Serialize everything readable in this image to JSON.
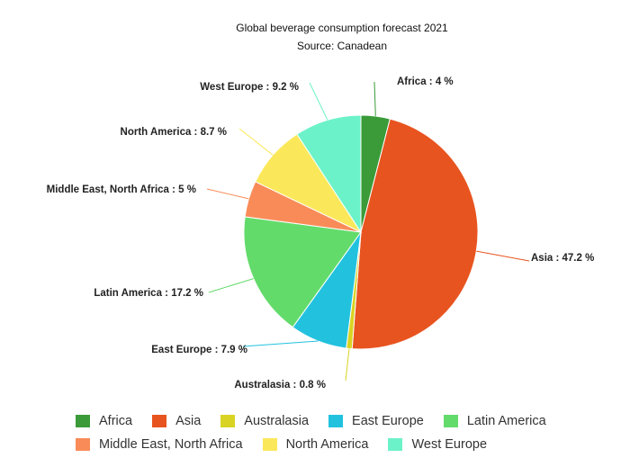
{
  "chart_data": {
    "type": "pie",
    "title": "Global beverage consumption forecast 2021",
    "subtitle": "Source: Canadean",
    "slices": [
      {
        "name": "Africa",
        "value": 4,
        "label": "Africa : 4 %",
        "color": "#3a9b38"
      },
      {
        "name": "Asia",
        "value": 47.2,
        "label": "Asia : 47.2 %",
        "color": "#e8541f"
      },
      {
        "name": "Australasia",
        "value": 0.8,
        "label": "Australasia : 0.8 %",
        "color": "#d9d323"
      },
      {
        "name": "East Europe",
        "value": 7.9,
        "label": "East Europe : 7.9 %",
        "color": "#22c2df"
      },
      {
        "name": "Latin America",
        "value": 17.2,
        "label": "Latin America : 17.2 %",
        "color": "#63db6b"
      },
      {
        "name": "Middle East, North Africa",
        "value": 5,
        "label": "Middle East, North Africa : 5 %",
        "color": "#f98b58"
      },
      {
        "name": "North America",
        "value": 8.7,
        "label": "North America : 8.7 %",
        "color": "#fbe85a"
      },
      {
        "name": "West Europe",
        "value": 9.2,
        "label": "West Europe : 9.2 %",
        "color": "#6cf2c9"
      }
    ],
    "legend_position": "bottom"
  }
}
